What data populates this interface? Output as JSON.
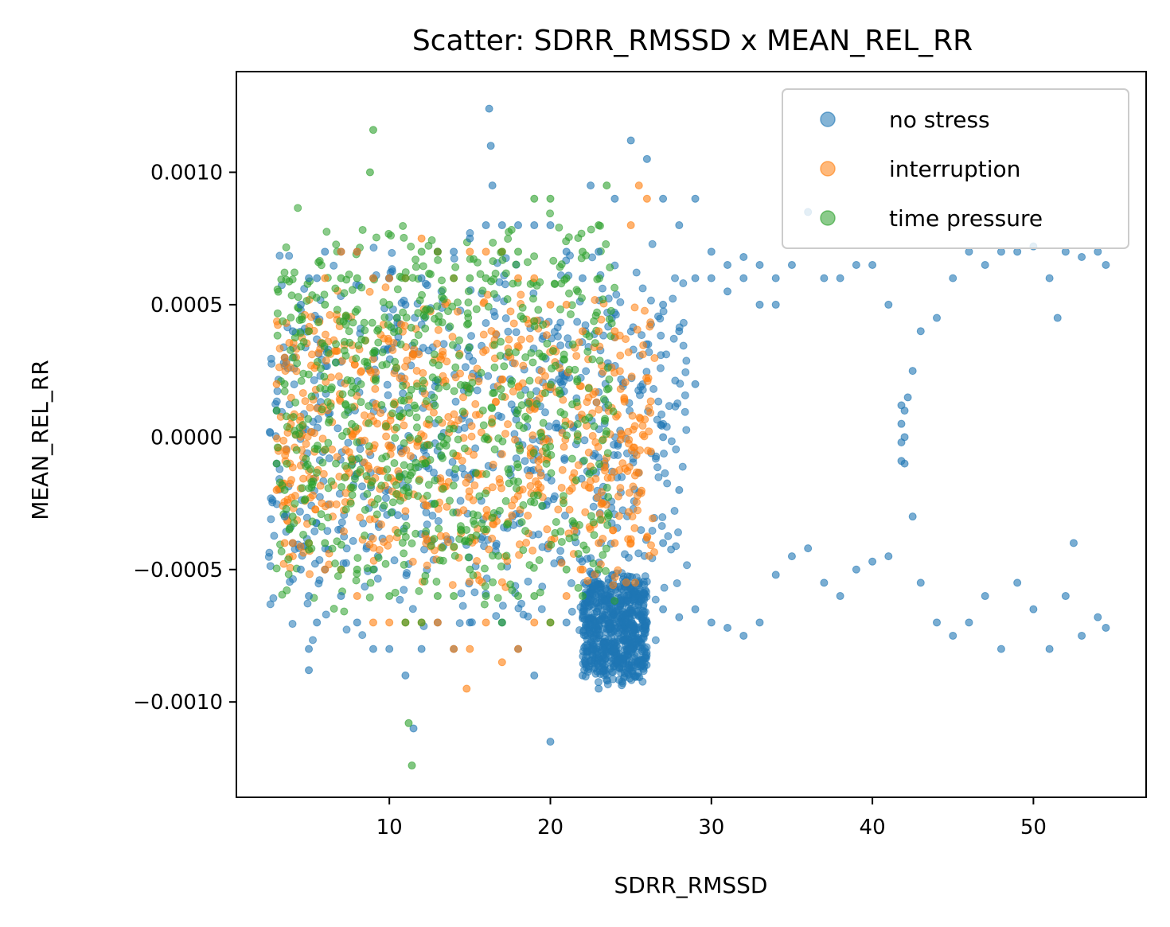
{
  "chart_data": {
    "type": "scatter",
    "title": "Scatter: SDRR_RMSSD x MEAN_REL_RR",
    "xlabel": "SDRR_RMSSD",
    "ylabel": "MEAN_REL_RR",
    "xlim": [
      0.5,
      57.0
    ],
    "ylim": [
      -0.00136,
      0.00138
    ],
    "xticks": [
      10,
      20,
      30,
      40,
      50
    ],
    "yticks": [
      -0.001,
      -0.0005,
      0.0,
      0.0005,
      0.001
    ],
    "xtick_labels": [
      "10",
      "20",
      "30",
      "40",
      "50"
    ],
    "ytick_labels": [
      "−0.0010",
      "−0.0005",
      "0.0000",
      "0.0005",
      "0.0010"
    ],
    "grid": false,
    "legend_position": "top-right",
    "series": [
      {
        "name": "no stress",
        "color": "#1f77b4",
        "points": [
          [
            3,
            0.0001
          ],
          [
            3,
            -0.0001
          ],
          [
            3.5,
            0.0003
          ],
          [
            3.5,
            -0.0003
          ],
          [
            4,
            0.0004
          ],
          [
            4,
            -0.0004
          ],
          [
            4.5,
            0.0005
          ],
          [
            4.5,
            -0.0005
          ],
          [
            5,
            0.0006
          ],
          [
            5,
            -0.0006
          ],
          [
            5,
            -0.0008
          ],
          [
            5,
            -0.00088
          ],
          [
            5.5,
            0.0006
          ],
          [
            5.5,
            -0.0007
          ],
          [
            6,
            0.0007
          ],
          [
            6,
            -0.0005
          ],
          [
            7,
            0.0007
          ],
          [
            7,
            -0.0006
          ],
          [
            8,
            0.0007
          ],
          [
            8,
            -0.0007
          ],
          [
            9,
            0.0006
          ],
          [
            9,
            -0.0008
          ],
          [
            10,
            0.0006
          ],
          [
            10,
            -0.0008
          ],
          [
            11,
            0.0005
          ],
          [
            11,
            -0.0009
          ],
          [
            11.5,
            -0.0011
          ],
          [
            12,
            0.0006
          ],
          [
            12,
            -0.0008
          ],
          [
            13,
            0.0007
          ],
          [
            13,
            -0.0007
          ],
          [
            14,
            0.0007
          ],
          [
            14,
            -0.0008
          ],
          [
            15,
            0.00075
          ],
          [
            15,
            -0.0007
          ],
          [
            16,
            0.0008
          ],
          [
            16.2,
            0.00124
          ],
          [
            16.3,
            0.0011
          ],
          [
            16.4,
            0.00095
          ],
          [
            17,
            0.0008
          ],
          [
            17,
            -0.0007
          ],
          [
            18,
            0.0008
          ],
          [
            18,
            -0.0008
          ],
          [
            19,
            0.0008
          ],
          [
            19,
            -0.0009
          ],
          [
            20,
            0.0008
          ],
          [
            20,
            -0.00115
          ],
          [
            21,
            0.0007
          ],
          [
            21,
            -0.0007
          ],
          [
            22,
            0.0006
          ],
          [
            22,
            -0.0009
          ],
          [
            22.5,
            0.00095
          ],
          [
            23,
            0.0007
          ],
          [
            23,
            -0.00095
          ],
          [
            24,
            0.0009
          ],
          [
            24,
            -0.0008
          ],
          [
            25,
            0.00112
          ],
          [
            25,
            -0.0008
          ],
          [
            26,
            0.00105
          ],
          [
            26,
            -0.0007
          ],
          [
            27,
            0.0009
          ],
          [
            27,
            0.0005
          ],
          [
            27,
            0.0
          ],
          [
            27,
            -0.0004
          ],
          [
            27,
            -0.00065
          ],
          [
            28,
            0.0008
          ],
          [
            28,
            0.0004
          ],
          [
            28,
            -0.0002
          ],
          [
            28,
            -0.00068
          ],
          [
            29,
            0.0009
          ],
          [
            29,
            0.0006
          ],
          [
            29,
            0.0002
          ],
          [
            29,
            -0.00065
          ],
          [
            30,
            0.0007
          ],
          [
            30,
            0.0006
          ],
          [
            30,
            -0.0007
          ],
          [
            31,
            0.00065
          ],
          [
            31,
            0.00055
          ],
          [
            31,
            -0.00072
          ],
          [
            32,
            0.00068
          ],
          [
            32,
            0.0006
          ],
          [
            32,
            -0.00075
          ],
          [
            33,
            0.00065
          ],
          [
            33,
            0.0005
          ],
          [
            33,
            -0.0007
          ],
          [
            34,
            0.0006
          ],
          [
            34,
            0.0005
          ],
          [
            34,
            -0.00052
          ],
          [
            35,
            0.00065
          ],
          [
            35,
            -0.00045
          ],
          [
            36,
            0.00085
          ],
          [
            36,
            -0.00042
          ],
          [
            37,
            0.0006
          ],
          [
            37,
            -0.00055
          ],
          [
            38,
            0.0006
          ],
          [
            38,
            -0.0006
          ],
          [
            39,
            0.00065
          ],
          [
            39,
            -0.0005
          ],
          [
            40,
            0.00065
          ],
          [
            40,
            -0.00047
          ],
          [
            41,
            0.0005
          ],
          [
            41,
            -0.00045
          ],
          [
            41.8,
            0.00012
          ],
          [
            41.8,
            5e-05
          ],
          [
            41.8,
            -2e-05
          ],
          [
            41.8,
            -9e-05
          ],
          [
            42,
            0.0001
          ],
          [
            42,
            0.0
          ],
          [
            42,
            -0.0001
          ],
          [
            42.2,
            0.00015
          ],
          [
            42.5,
            0.00025
          ],
          [
            42.5,
            -0.0003
          ],
          [
            43,
            0.0004
          ],
          [
            43,
            -0.00055
          ],
          [
            44,
            0.00045
          ],
          [
            44,
            -0.0007
          ],
          [
            45,
            0.0006
          ],
          [
            45,
            -0.00075
          ],
          [
            46,
            0.0007
          ],
          [
            46,
            -0.0007
          ],
          [
            47,
            0.00065
          ],
          [
            47,
            -0.0006
          ],
          [
            48,
            0.0007
          ],
          [
            48,
            -0.0008
          ],
          [
            49,
            0.0007
          ],
          [
            49,
            -0.00055
          ],
          [
            50,
            0.00072
          ],
          [
            50,
            -0.00065
          ],
          [
            51,
            0.0006
          ],
          [
            51,
            -0.0008
          ],
          [
            51.5,
            0.00045
          ],
          [
            52,
            0.0007
          ],
          [
            52,
            -0.0006
          ],
          [
            52.5,
            -0.0004
          ],
          [
            53,
            0.00068
          ],
          [
            53,
            -0.00075
          ],
          [
            54,
            0.0007
          ],
          [
            54,
            -0.00068
          ],
          [
            54.5,
            0.00065
          ],
          [
            54.5,
            -0.00072
          ]
        ]
      },
      {
        "name": "interruption",
        "color": "#ff7f0e",
        "points": [
          [
            3,
            0.0002
          ],
          [
            3,
            -0.0002
          ],
          [
            3.5,
            0.0003
          ],
          [
            3.5,
            -0.0004
          ],
          [
            4,
            -0.0004
          ],
          [
            5,
            0.0004
          ],
          [
            5,
            -0.0004
          ],
          [
            6,
            0.0006
          ],
          [
            6,
            -0.0005
          ],
          [
            7,
            0.0007
          ],
          [
            7,
            -0.0005
          ],
          [
            8,
            0.0007
          ],
          [
            8,
            -0.0006
          ],
          [
            9,
            0.0006
          ],
          [
            9,
            -0.0007
          ],
          [
            10,
            0.0006
          ],
          [
            10,
            -0.0007
          ],
          [
            11,
            0.0006
          ],
          [
            11,
            -0.0007
          ],
          [
            12,
            0.00075
          ],
          [
            12,
            -0.0007
          ],
          [
            13,
            0.0007
          ],
          [
            13,
            -0.0007
          ],
          [
            14,
            0.0006
          ],
          [
            14,
            -0.0008
          ],
          [
            14.8,
            -0.00095
          ],
          [
            15,
            0.0007
          ],
          [
            15,
            -0.0008
          ],
          [
            16,
            0.0007
          ],
          [
            16,
            -0.0007
          ],
          [
            17,
            0.0007
          ],
          [
            17,
            -0.00085
          ],
          [
            18,
            0.0006
          ],
          [
            18,
            -0.0008
          ],
          [
            19,
            0.0006
          ],
          [
            19,
            -0.0007
          ],
          [
            20,
            0.0005
          ],
          [
            20,
            -0.0007
          ],
          [
            21,
            0.0005
          ],
          [
            21,
            -0.0006
          ],
          [
            22,
            0.0004
          ],
          [
            22,
            -0.0005
          ],
          [
            23,
            0.0004
          ],
          [
            23,
            -0.0004
          ],
          [
            24,
            0.0004
          ],
          [
            24,
            -0.0004
          ],
          [
            25,
            0.0008
          ],
          [
            25,
            -0.0004
          ],
          [
            25.5,
            0.00095
          ],
          [
            26,
            0.0009
          ],
          [
            26,
            -0.00038
          ]
        ]
      },
      {
        "name": "time pressure",
        "color": "#2ca02c",
        "points": [
          [
            3,
            0.0001
          ],
          [
            3,
            -0.0001
          ],
          [
            3.5,
            0.0002
          ],
          [
            3.5,
            -0.0002
          ],
          [
            4,
            0.0003
          ],
          [
            4,
            -0.0003
          ],
          [
            5,
            0.0004
          ],
          [
            5,
            -0.0004
          ],
          [
            6,
            0.0005
          ],
          [
            6,
            -0.0004
          ],
          [
            7,
            0.0006
          ],
          [
            7,
            -0.0005
          ],
          [
            8,
            0.0006
          ],
          [
            8,
            -0.0005
          ],
          [
            8.8,
            0.001
          ],
          [
            9,
            0.00116
          ],
          [
            9,
            -0.0005
          ],
          [
            10,
            0.0005
          ],
          [
            10,
            -0.0006
          ],
          [
            11,
            0.0006
          ],
          [
            11,
            -0.0007
          ],
          [
            11.2,
            -0.00108
          ],
          [
            11.4,
            -0.00124
          ],
          [
            12,
            0.0007
          ],
          [
            12,
            -0.0007
          ],
          [
            13,
            0.0007
          ],
          [
            13,
            -0.0006
          ],
          [
            14,
            0.0006
          ],
          [
            14,
            -0.0006
          ],
          [
            15,
            0.0006
          ],
          [
            15,
            -0.0005
          ],
          [
            16,
            0.0006
          ],
          [
            16,
            -0.0006
          ],
          [
            17,
            0.0007
          ],
          [
            17,
            -0.0007
          ],
          [
            18,
            0.0007
          ],
          [
            18,
            -0.0006
          ],
          [
            19,
            0.0009
          ],
          [
            19,
            -0.0006
          ],
          [
            20,
            0.0009
          ],
          [
            20,
            -0.0007
          ],
          [
            21,
            0.0006
          ],
          [
            21,
            -0.0005
          ],
          [
            22,
            0.0007
          ],
          [
            22,
            -0.0006
          ],
          [
            23,
            0.0008
          ],
          [
            23,
            -0.0005
          ],
          [
            23.5,
            0.00095
          ]
        ]
      }
    ],
    "dense_regions": [
      {
        "series": "no stress",
        "x": [
          2.5,
          28.5
        ],
        "y": [
          -0.0008,
          0.0008
        ]
      },
      {
        "series": "no stress",
        "x": [
          22,
          26
        ],
        "y": [
          -0.00095,
          -0.0005
        ]
      },
      {
        "series": "interruption",
        "x": [
          3,
          26.5
        ],
        "y": [
          -0.0006,
          0.0006
        ]
      },
      {
        "series": "time pressure",
        "x": [
          3,
          24
        ],
        "y": [
          -0.0007,
          0.0009
        ]
      }
    ]
  }
}
